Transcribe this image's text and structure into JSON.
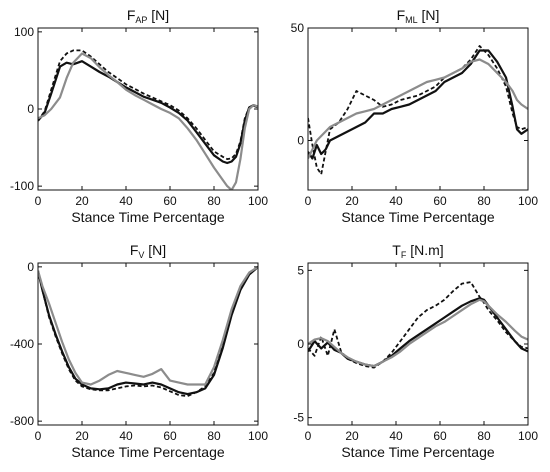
{
  "chart_data": [
    {
      "type": "line",
      "title": "F",
      "title_subscript": "AP",
      "title_unit": " [N]",
      "xlabel": "Stance Time Percentage",
      "ylabel": "",
      "xlim": [
        0,
        100
      ],
      "ylim": [
        -105,
        105
      ],
      "xticks": [
        0,
        20,
        40,
        60,
        80,
        100
      ],
      "xtick_labels": [
        "0",
        "20",
        "40",
        "60",
        "80",
        "100"
      ],
      "yticks": [
        100,
        0,
        -100
      ],
      "ytick_labels": [
        "100",
        "0",
        "-100"
      ],
      "grid": false,
      "legend": "none",
      "series": [
        {
          "color": "#111111",
          "dash": "solid",
          "width": 2.2,
          "x": [
            0,
            3,
            6,
            10,
            13,
            16,
            20,
            24,
            28,
            32,
            36,
            40,
            44,
            48,
            52,
            56,
            60,
            64,
            68,
            72,
            76,
            80,
            84,
            86,
            88,
            90,
            92,
            94,
            96,
            98,
            100
          ],
          "y": [
            -15,
            -5,
            20,
            55,
            60,
            58,
            62,
            55,
            48,
            42,
            35,
            28,
            22,
            16,
            12,
            8,
            2,
            -5,
            -15,
            -30,
            -45,
            -60,
            -68,
            -70,
            -68,
            -62,
            -45,
            -15,
            2,
            5,
            3
          ]
        },
        {
          "color": "#111111",
          "dash": "dashed",
          "width": 1.8,
          "x": [
            0,
            3,
            6,
            10,
            13,
            16,
            20,
            24,
            28,
            32,
            36,
            40,
            44,
            48,
            52,
            56,
            60,
            64,
            68,
            72,
            76,
            80,
            84,
            86,
            88,
            90,
            92,
            94,
            96,
            98,
            100
          ],
          "y": [
            -15,
            -3,
            25,
            62,
            72,
            76,
            76,
            68,
            58,
            48,
            40,
            32,
            26,
            20,
            15,
            10,
            5,
            -2,
            -12,
            -25,
            -40,
            -55,
            -62,
            -65,
            -64,
            -58,
            -42,
            -12,
            2,
            4,
            2
          ]
        },
        {
          "color": "#8c8c8c",
          "dash": "solid",
          "width": 2.2,
          "x": [
            0,
            3,
            6,
            10,
            13,
            16,
            20,
            24,
            28,
            32,
            36,
            40,
            44,
            48,
            52,
            56,
            60,
            64,
            68,
            72,
            76,
            80,
            84,
            86,
            88,
            90,
            92,
            94,
            96,
            98,
            100
          ],
          "y": [
            -12,
            -8,
            0,
            15,
            40,
            60,
            72,
            66,
            54,
            44,
            35,
            25,
            18,
            12,
            6,
            0,
            -5,
            -12,
            -25,
            -40,
            -58,
            -76,
            -92,
            -100,
            -105,
            -95,
            -65,
            -25,
            0,
            5,
            3
          ]
        }
      ]
    },
    {
      "type": "line",
      "title": "F",
      "title_subscript": "ML",
      "title_unit": " [N]",
      "xlabel": "Stance Time Percentage",
      "ylabel": "",
      "xlim": [
        0,
        100
      ],
      "ylim": [
        -22,
        50
      ],
      "xticks": [
        0,
        20,
        40,
        60,
        80,
        100
      ],
      "xtick_labels": [
        "0",
        "20",
        "40",
        "60",
        "80",
        "100"
      ],
      "yticks": [
        50,
        0
      ],
      "ytick_labels": [
        "50",
        "0"
      ],
      "grid": false,
      "legend": "none",
      "series": [
        {
          "color": "#111111",
          "dash": "solid",
          "width": 2.2,
          "x": [
            0,
            2,
            4,
            6,
            8,
            10,
            14,
            18,
            22,
            26,
            30,
            34,
            38,
            42,
            46,
            50,
            54,
            58,
            62,
            66,
            70,
            74,
            78,
            82,
            86,
            90,
            93,
            95,
            97,
            100
          ],
          "y": [
            -5,
            -8,
            -2,
            -6,
            -4,
            0,
            2,
            4,
            6,
            8,
            12,
            12,
            14,
            15,
            16,
            18,
            20,
            22,
            26,
            28,
            30,
            34,
            40,
            40,
            35,
            28,
            15,
            5,
            3,
            5
          ]
        },
        {
          "color": "#111111",
          "dash": "dashed",
          "width": 1.8,
          "x": [
            0,
            2,
            4,
            6,
            8,
            10,
            14,
            18,
            22,
            26,
            30,
            34,
            38,
            42,
            46,
            50,
            54,
            58,
            62,
            66,
            70,
            74,
            78,
            82,
            86,
            90,
            93,
            95,
            97,
            100
          ],
          "y": [
            10,
            -2,
            -12,
            -15,
            -5,
            5,
            8,
            14,
            22,
            20,
            18,
            15,
            16,
            18,
            19,
            20,
            22,
            24,
            28,
            30,
            32,
            36,
            42,
            38,
            32,
            24,
            12,
            6,
            5,
            6
          ]
        },
        {
          "color": "#8c8c8c",
          "dash": "solid",
          "width": 2.2,
          "x": [
            0,
            2,
            4,
            6,
            8,
            10,
            14,
            18,
            22,
            26,
            30,
            34,
            38,
            42,
            46,
            50,
            54,
            58,
            62,
            66,
            70,
            74,
            78,
            82,
            86,
            90,
            93,
            95,
            97,
            100
          ],
          "y": [
            -8,
            -4,
            0,
            2,
            4,
            6,
            8,
            10,
            12,
            13,
            14,
            16,
            18,
            20,
            22,
            24,
            26,
            27,
            28,
            30,
            32,
            35,
            36,
            34,
            30,
            26,
            22,
            18,
            16,
            14
          ]
        }
      ]
    },
    {
      "type": "line",
      "title": "F",
      "title_subscript": "V",
      "title_unit": " [N]",
      "xlabel": "Stance Time Percentage",
      "ylabel": "",
      "xlim": [
        0,
        100
      ],
      "ylim": [
        -820,
        20
      ],
      "xticks": [
        0,
        20,
        40,
        60,
        80,
        100
      ],
      "xtick_labels": [
        "0",
        "20",
        "40",
        "60",
        "80",
        "100"
      ],
      "yticks": [
        0,
        -400,
        -800
      ],
      "ytick_labels": [
        "0",
        "-400",
        "-800"
      ],
      "grid": false,
      "legend": "none",
      "series": [
        {
          "color": "#111111",
          "dash": "solid",
          "width": 2.2,
          "x": [
            0,
            2,
            5,
            8,
            11,
            14,
            17,
            20,
            24,
            28,
            32,
            36,
            40,
            44,
            48,
            52,
            56,
            60,
            64,
            68,
            72,
            76,
            80,
            84,
            88,
            92,
            96,
            100
          ],
          "y": [
            -20,
            -120,
            -250,
            -350,
            -440,
            -520,
            -580,
            -610,
            -630,
            -635,
            -630,
            -610,
            -600,
            -605,
            -610,
            -600,
            -610,
            -630,
            -650,
            -660,
            -650,
            -630,
            -560,
            -420,
            -250,
            -120,
            -40,
            0
          ]
        },
        {
          "color": "#111111",
          "dash": "dashed",
          "width": 1.8,
          "x": [
            0,
            2,
            5,
            8,
            11,
            14,
            17,
            20,
            24,
            28,
            32,
            36,
            40,
            44,
            48,
            52,
            56,
            60,
            64,
            68,
            72,
            76,
            80,
            84,
            88,
            92,
            96,
            100
          ],
          "y": [
            -20,
            -120,
            -260,
            -360,
            -450,
            -530,
            -590,
            -620,
            -635,
            -640,
            -640,
            -630,
            -620,
            -615,
            -620,
            -615,
            -625,
            -645,
            -665,
            -670,
            -650,
            -620,
            -550,
            -400,
            -240,
            -110,
            -30,
            0
          ]
        },
        {
          "color": "#8c8c8c",
          "dash": "solid",
          "width": 2.2,
          "x": [
            0,
            2,
            5,
            8,
            11,
            14,
            17,
            20,
            24,
            28,
            32,
            36,
            40,
            44,
            48,
            52,
            56,
            60,
            64,
            68,
            72,
            76,
            80,
            84,
            88,
            92,
            96,
            100
          ],
          "y": [
            -20,
            -100,
            -190,
            -290,
            -390,
            -480,
            -550,
            -600,
            -610,
            -590,
            -560,
            -540,
            -550,
            -560,
            -570,
            -555,
            -530,
            -590,
            -600,
            -610,
            -610,
            -610,
            -520,
            -380,
            -220,
            -100,
            -30,
            0
          ]
        }
      ]
    },
    {
      "type": "line",
      "title": "T",
      "title_subscript": "F",
      "title_unit": " [N.m]",
      "xlabel": "Stance Time Percentage",
      "ylabel": "",
      "xlim": [
        0,
        100
      ],
      "ylim": [
        -5.5,
        5.5
      ],
      "xticks": [
        0,
        20,
        40,
        60,
        80,
        100
      ],
      "xtick_labels": [
        "0",
        "20",
        "40",
        "60",
        "80",
        "100"
      ],
      "yticks": [
        5,
        0,
        -5
      ],
      "ytick_labels": [
        "5",
        "0",
        "-5"
      ],
      "grid": false,
      "legend": "none",
      "series": [
        {
          "color": "#111111",
          "dash": "solid",
          "width": 2.2,
          "x": [
            0,
            3,
            6,
            9,
            12,
            15,
            18,
            22,
            26,
            30,
            34,
            38,
            42,
            46,
            50,
            54,
            58,
            62,
            66,
            70,
            74,
            78,
            80,
            82,
            86,
            90,
            94,
            97,
            100
          ],
          "y": [
            -0.5,
            0.2,
            -0.3,
            0.1,
            -0.4,
            -0.6,
            -1.0,
            -1.2,
            -1.4,
            -1.5,
            -1.2,
            -0.8,
            -0.3,
            0.2,
            0.6,
            1.0,
            1.4,
            1.8,
            2.2,
            2.6,
            2.9,
            3.1,
            3.0,
            2.6,
            1.8,
            1.0,
            0.2,
            -0.3,
            -0.5
          ]
        },
        {
          "color": "#111111",
          "dash": "dashed",
          "width": 1.8,
          "x": [
            0,
            3,
            6,
            9,
            12,
            15,
            18,
            22,
            26,
            30,
            34,
            38,
            42,
            46,
            50,
            54,
            58,
            62,
            66,
            70,
            74,
            78,
            80,
            82,
            86,
            90,
            94,
            97,
            100
          ],
          "y": [
            -0.3,
            -0.8,
            0.5,
            -0.8,
            1.0,
            -0.5,
            -1.0,
            -1.3,
            -1.5,
            -1.6,
            -1.2,
            -0.6,
            0.2,
            1.0,
            1.8,
            2.3,
            2.6,
            3.0,
            3.6,
            4.1,
            4.2,
            3.2,
            2.8,
            2.3,
            1.6,
            0.8,
            0.2,
            -0.2,
            -0.3
          ]
        },
        {
          "color": "#8c8c8c",
          "dash": "solid",
          "width": 2.2,
          "x": [
            0,
            3,
            6,
            9,
            12,
            15,
            18,
            22,
            26,
            30,
            34,
            38,
            42,
            46,
            50,
            54,
            58,
            62,
            66,
            70,
            74,
            78,
            80,
            82,
            86,
            90,
            94,
            97,
            100
          ],
          "y": [
            0.0,
            0.3,
            0.4,
            0.2,
            -0.2,
            -0.6,
            -0.9,
            -1.2,
            -1.4,
            -1.5,
            -1.2,
            -0.9,
            -0.5,
            0.0,
            0.4,
            0.8,
            1.2,
            1.5,
            1.9,
            2.3,
            2.7,
            3.0,
            2.9,
            2.6,
            2.0,
            1.5,
            0.9,
            0.5,
            0.3
          ]
        }
      ]
    }
  ]
}
